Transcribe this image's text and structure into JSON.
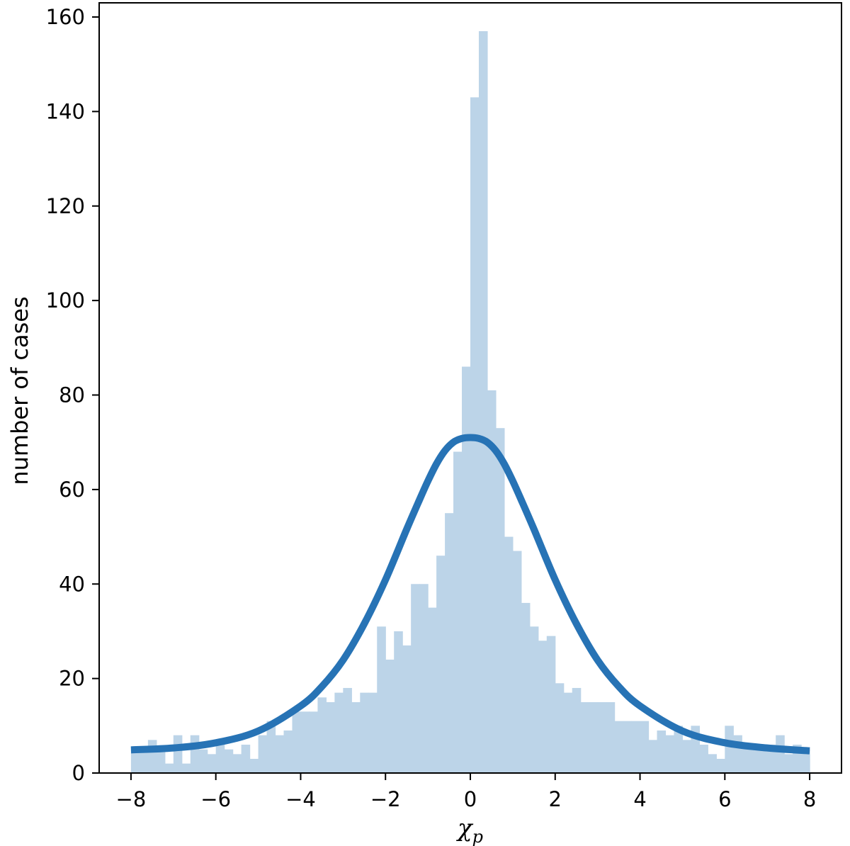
{
  "chart_data": {
    "type": "bar",
    "title": "",
    "xlabel": "χ",
    "xlabel_subscript": "p",
    "ylabel": "number of cases",
    "xlim": [
      -8.75,
      8.75
    ],
    "ylim": [
      0,
      163
    ],
    "grid": false,
    "x_ticks": [
      -8,
      -6,
      -4,
      -2,
      0,
      2,
      4,
      6,
      8
    ],
    "x_tick_labels": [
      "−8",
      "−6",
      "−4",
      "−2",
      "0",
      "2",
      "4",
      "6",
      "8"
    ],
    "y_ticks": [
      0,
      20,
      40,
      60,
      80,
      100,
      120,
      140,
      160
    ],
    "y_tick_labels": [
      "0",
      "20",
      "40",
      "60",
      "80",
      "100",
      "120",
      "140",
      "160"
    ],
    "histogram": {
      "color": "#bcd4e8",
      "bin_start": -8,
      "bin_width": 0.2,
      "counts": [
        5,
        5,
        7,
        5,
        2,
        8,
        2,
        8,
        5,
        4,
        7,
        5,
        4,
        6,
        3,
        8,
        11,
        8,
        9,
        13,
        13,
        13,
        16,
        15,
        17,
        18,
        15,
        17,
        17,
        31,
        24,
        30,
        27,
        40,
        40,
        35,
        46,
        55,
        68,
        86,
        143,
        157,
        81,
        73,
        50,
        47,
        36,
        31,
        28,
        29,
        19,
        17,
        18,
        15,
        15,
        15,
        15,
        11,
        11,
        11,
        11,
        7,
        9,
        8,
        10,
        7,
        10,
        6,
        4,
        3,
        10,
        8,
        6,
        6,
        5,
        6,
        8,
        4,
        6,
        5
      ]
    },
    "series": [
      {
        "type": "line",
        "color": "#2773b5",
        "x": [
          -8,
          -7,
          -6,
          -5,
          -4,
          -3.5,
          -3,
          -2.5,
          -2,
          -1.5,
          -1.2,
          -1,
          -0.8,
          -0.6,
          -0.4,
          -0.2,
          0,
          0.2,
          0.4,
          0.6,
          0.8,
          1,
          1.2,
          1.5,
          2,
          2.5,
          3,
          3.5,
          4,
          5,
          6,
          7,
          8
        ],
        "y": [
          4.9,
          5.3,
          6.4,
          8.9,
          14.2,
          18.3,
          23.9,
          31.6,
          40.9,
          51.6,
          57.8,
          61.8,
          65.4,
          68.2,
          70.0,
          70.8,
          71.0,
          70.8,
          70.0,
          68.2,
          65.4,
          61.8,
          57.8,
          51.6,
          40.9,
          31.6,
          23.9,
          18.3,
          14.2,
          8.9,
          6.4,
          5.3,
          4.7
        ]
      }
    ]
  }
}
